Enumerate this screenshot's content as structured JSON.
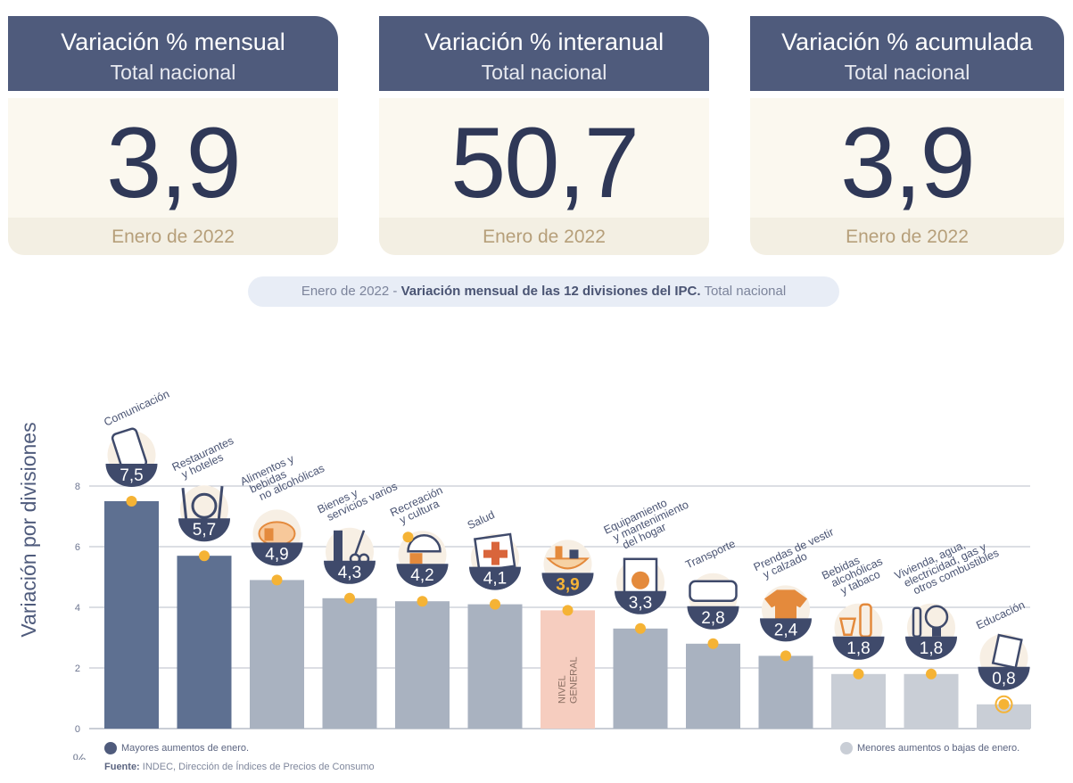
{
  "cards": [
    {
      "title": "Variación % mensual",
      "subtitle": "Total nacional",
      "value": "3,9",
      "date": "Enero de 2022"
    },
    {
      "title": "Variación % interanual",
      "subtitle": "Total nacional",
      "value": "50,7",
      "date": "Enero de 2022"
    },
    {
      "title": "Variación % acumulada",
      "subtitle": "Total nacional",
      "value": "3,9",
      "date": "Enero de 2022"
    }
  ],
  "banner": {
    "date": "Enero de 2022",
    "separator": " - ",
    "bold": "Variación mensual de las 12 divisiones del IPC.",
    "tail": " Total nacional"
  },
  "chart_data": {
    "type": "bar",
    "ylabel": "Variación por divisiones",
    "unit_label": "%",
    "ylim": [
      0,
      8
    ],
    "yticks": [
      "0",
      "2",
      "4",
      "6",
      "8"
    ],
    "grid": true,
    "categories": [
      [
        "Comunicación"
      ],
      [
        "Restaurantes",
        "y hoteles"
      ],
      [
        "Alimentos y",
        "bebidas",
        "no alcohólicas"
      ],
      [
        "Bienes y",
        "servicios varios"
      ],
      [
        "Recreación",
        "y cultura"
      ],
      [
        "Salud"
      ],
      [],
      [
        "Equipamiento",
        "y mantenimiento",
        "del hogar"
      ],
      [
        "Transporte"
      ],
      [
        "Prendas de vestir",
        "y calzado"
      ],
      [
        "Bebidas",
        "alcohólicas",
        "y tabaco"
      ],
      [
        "Vivienda, agua,",
        "electricidad, gas y",
        "otros combustibles"
      ],
      [
        "Educación"
      ]
    ],
    "values": [
      7.5,
      5.7,
      4.9,
      4.3,
      4.2,
      4.1,
      3.9,
      3.3,
      2.8,
      2.4,
      1.8,
      1.8,
      0.8
    ],
    "value_labels": [
      "7,5",
      "5,7",
      "4,9",
      "4,3",
      "4,2",
      "4,1",
      "3,9",
      "3,3",
      "2,8",
      "2,4",
      "1,8",
      "1,8",
      "0,8"
    ],
    "groups": [
      "mayores",
      "mayores",
      "medio",
      "medio",
      "medio",
      "medio",
      "general",
      "medio",
      "medio",
      "medio",
      "menores",
      "menores",
      "menores"
    ],
    "general_bar_label": [
      "NIVEL",
      "GENERAL"
    ],
    "icons": [
      "phone-icon",
      "cutlery-icon",
      "chicken-icon",
      "comb-scissors-icon",
      "umbrella-icon",
      "first-aid-icon",
      "shopping-bag-icon",
      "washing-machine-icon",
      "bus-icon",
      "shirt-icon",
      "bottle-icon",
      "lightbulb-icon",
      "notebook-icon"
    ],
    "colors": {
      "mayores": "#5e7091",
      "medio": "#a9b2c0",
      "menores": "#c9ced6",
      "general": "#f6cdbf",
      "badge": "#3f4a6b",
      "dot": "#f5b335",
      "grid": "#b9bec8",
      "label": "#4a5473",
      "icon": "#e48a3c"
    }
  },
  "legend": [
    {
      "text": "Mayores aumentos de enero.",
      "color": "#4f5b7c"
    },
    {
      "text": "Menores aumentos o bajas de enero.",
      "color": "#c9ced6"
    }
  ],
  "source": {
    "label": "Fuente:",
    "text": " INDEC, Dirección de Índices de Precios de Consumo"
  }
}
